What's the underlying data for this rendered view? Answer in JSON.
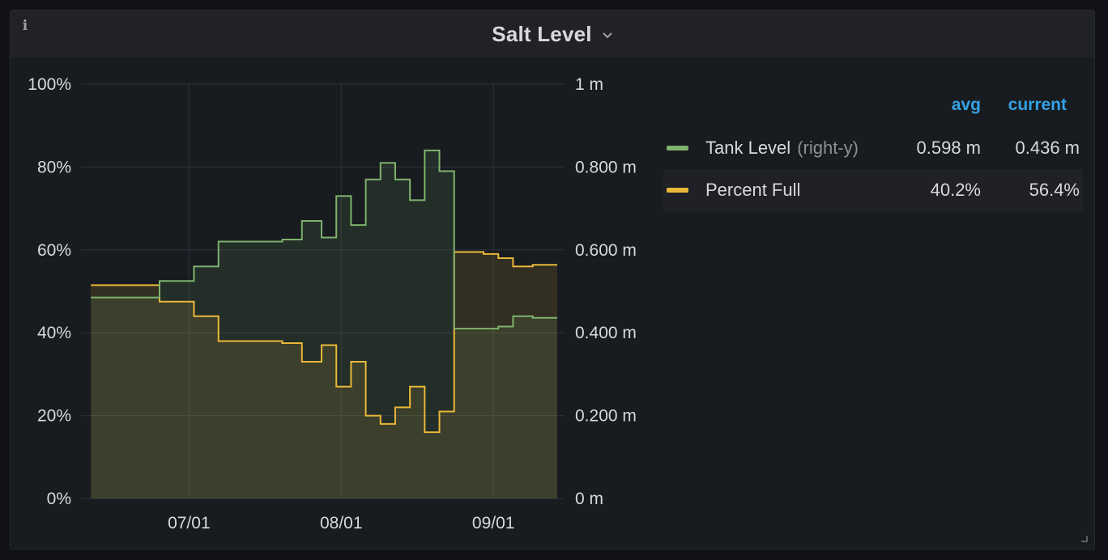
{
  "panel": {
    "title": "Salt Level",
    "info_icon": "info-icon",
    "menu_icon": "chevron-down-icon"
  },
  "legend": {
    "headers": {
      "avg": "avg",
      "current": "current"
    },
    "items": [
      {
        "name": "Tank Level",
        "axis_note": "(right-y)",
        "avg": "0.598 m",
        "current": "0.436 m",
        "color": "#7eb26d"
      },
      {
        "name": "Percent Full",
        "axis_note": "",
        "avg": "40.2%",
        "current": "56.4%",
        "color": "#eab839"
      }
    ]
  },
  "chart_data": {
    "type": "area",
    "x_ticks": [
      "07/01",
      "08/01",
      "09/01"
    ],
    "x_dates": [
      "2023-06-11",
      "2023-06-18",
      "2023-06-25",
      "2023-07-02",
      "2023-07-07",
      "2023-07-20",
      "2023-07-24",
      "2023-07-28",
      "2023-07-31",
      "2023-08-03",
      "2023-08-06",
      "2023-08-09",
      "2023-08-12",
      "2023-08-15",
      "2023-08-18",
      "2023-08-21",
      "2023-08-24",
      "2023-08-27",
      "2023-08-30",
      "2023-09-02",
      "2023-09-05",
      "2023-09-09"
    ],
    "left_axis": {
      "ticks": [
        "0%",
        "20%",
        "40%",
        "60%",
        "80%",
        "100%"
      ],
      "range": [
        0,
        100
      ]
    },
    "right_axis": {
      "ticks": [
        "0 m",
        "0.200 m",
        "0.400 m",
        "0.600 m",
        "0.800 m",
        "1 m"
      ],
      "range": [
        0,
        1
      ]
    },
    "series": [
      {
        "name": "Tank Level",
        "axis": "right",
        "color": "#7eb26d",
        "values": [
          0.485,
          0.485,
          0.525,
          0.56,
          0.62,
          0.625,
          0.67,
          0.63,
          0.73,
          0.66,
          0.77,
          0.81,
          0.77,
          0.72,
          0.84,
          0.79,
          0.41,
          0.41,
          0.41,
          0.415,
          0.44,
          0.436
        ]
      },
      {
        "name": "Percent Full",
        "axis": "left",
        "color": "#eab839",
        "values": [
          51.5,
          51.5,
          47.5,
          44,
          38,
          37.5,
          33,
          37,
          27,
          33,
          20,
          18,
          22,
          27,
          16,
          21,
          59.5,
          59.5,
          59,
          58,
          56,
          56.4
        ]
      }
    ]
  }
}
